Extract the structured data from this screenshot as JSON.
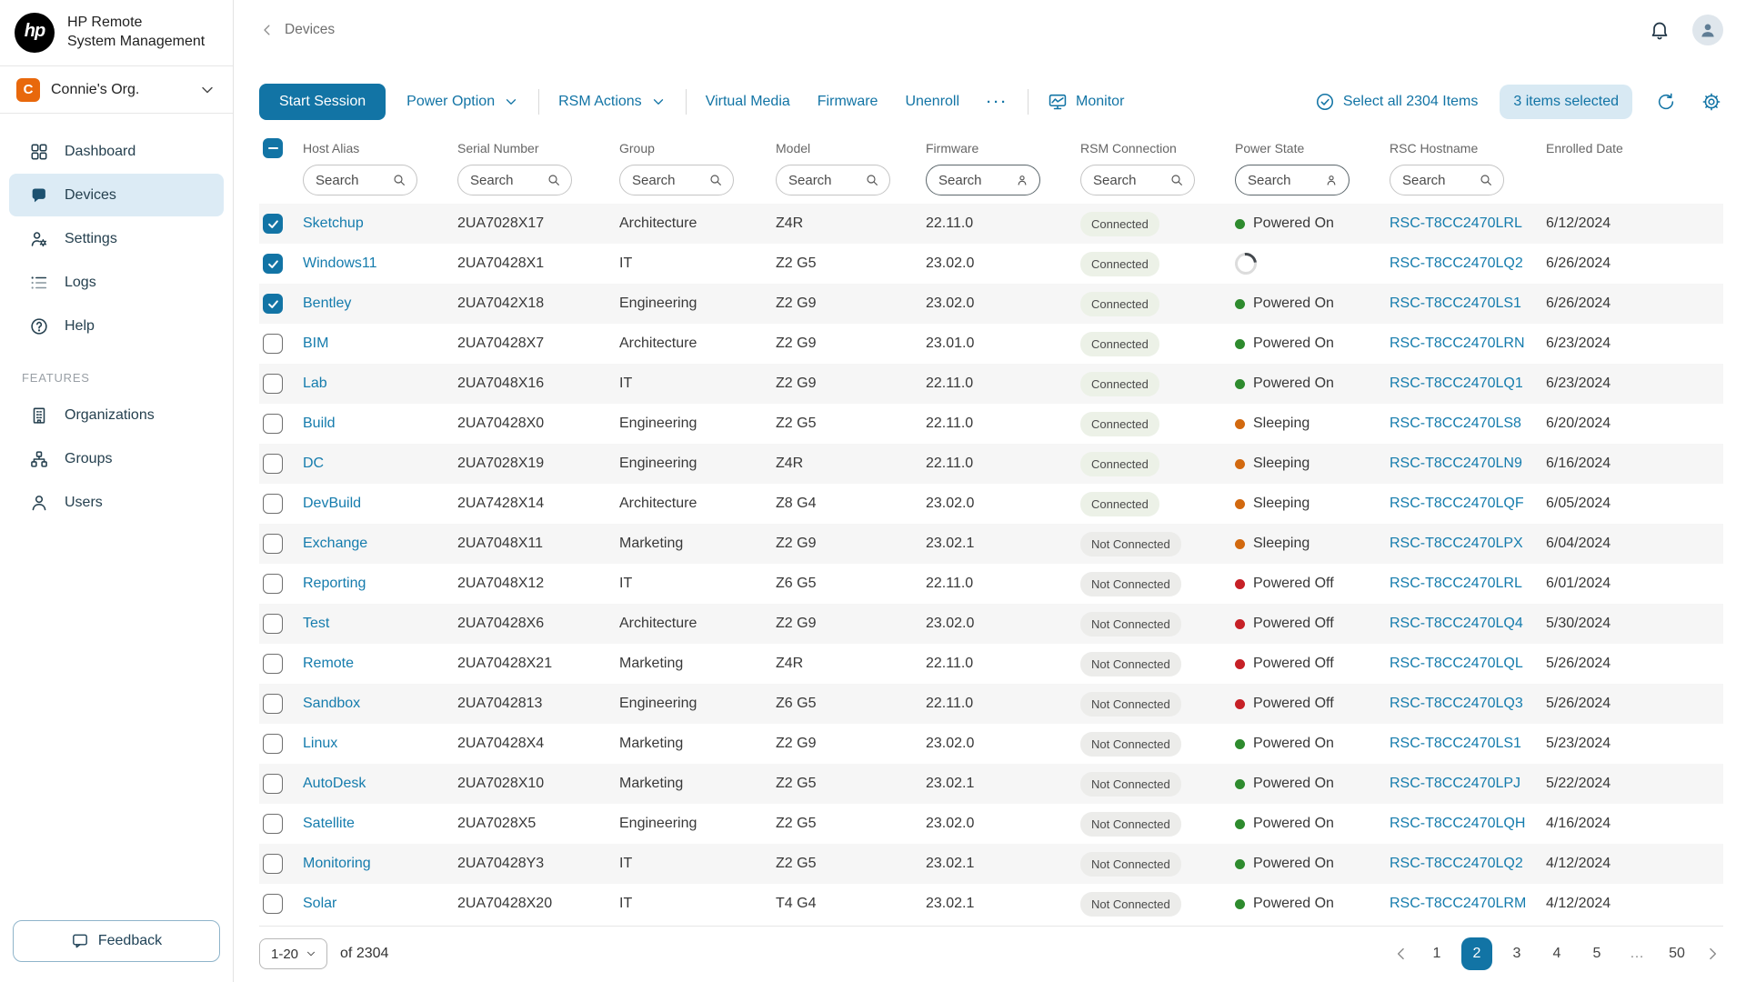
{
  "colors": {
    "accent": "#1274A5",
    "link": "#157CAD",
    "green": "#2E8B2E",
    "orange": "#D2690F",
    "red": "#C62026",
    "org_avatar": "#E8680C",
    "selected_badge_bg": "#D8E9F3",
    "nav_active_bg": "#DCEBF5",
    "row_stripe": "#F6F6F6"
  },
  "brand": {
    "logo_text": "hp",
    "title_line1": "HP Remote",
    "title_line2": "System Management"
  },
  "org": {
    "name": "Connie's Org.",
    "initial": "C"
  },
  "sidebar": {
    "items": [
      {
        "label": "Dashboard",
        "icon": "dashboard-icon",
        "active": false
      },
      {
        "label": "Devices",
        "icon": "devices-icon",
        "active": true
      },
      {
        "label": "Settings",
        "icon": "settings-icon",
        "active": false
      },
      {
        "label": "Logs",
        "icon": "logs-icon",
        "active": false
      },
      {
        "label": "Help",
        "icon": "help-icon",
        "active": false
      }
    ],
    "features_label": "FEATURES",
    "feature_items": [
      {
        "label": "Organizations",
        "icon": "organizations-icon"
      },
      {
        "label": "Groups",
        "icon": "groups-icon"
      },
      {
        "label": "Users",
        "icon": "users-icon"
      }
    ],
    "feedback_label": "Feedback"
  },
  "header": {
    "breadcrumb": "Devices"
  },
  "toolbar": {
    "start_session": "Start Session",
    "power_option": "Power Option",
    "rsm_actions": "RSM Actions",
    "virtual_media": "Virtual Media",
    "firmware": "Firmware",
    "unenroll": "Unenroll",
    "more": "···",
    "monitor": "Monitor",
    "select_all": "Select all 2304 Items",
    "selected_badge": "3 items selected"
  },
  "table": {
    "search_placeholder": "Search",
    "columns": [
      {
        "label": "Host Alias",
        "filter": "search",
        "dark": false
      },
      {
        "label": "Serial Number",
        "filter": "search",
        "dark": false
      },
      {
        "label": "Group",
        "filter": "search",
        "dark": false
      },
      {
        "label": "Model",
        "filter": "search",
        "dark": false
      },
      {
        "label": "Firmware",
        "filter": "person",
        "dark": true
      },
      {
        "label": "RSM Connection",
        "filter": "search",
        "dark": false
      },
      {
        "label": "Power State",
        "filter": "person",
        "dark": true
      },
      {
        "label": "RSC Hostname",
        "filter": "search",
        "dark": false
      },
      {
        "label": "Enrolled Date",
        "filter": null,
        "dark": false
      }
    ],
    "rows": [
      {
        "checked": true,
        "host": "Sketchup",
        "serial": "2UA7028X17",
        "group": "Architecture",
        "model": "Z4R",
        "firmware": "22.11.0",
        "connection": "Connected",
        "power": "on",
        "power_label": "Powered On",
        "hostname": "RSC-T8CC2470LRL",
        "enrolled": "6/12/2024"
      },
      {
        "checked": true,
        "host": "Windows11",
        "serial": "2UA70428X1",
        "group": "IT",
        "model": "Z2 G5",
        "firmware": "23.02.0",
        "connection": "Connected",
        "power": "loading",
        "power_label": "",
        "hostname": "RSC-T8CC2470LQ2",
        "enrolled": "6/26/2024"
      },
      {
        "checked": true,
        "host": "Bentley",
        "serial": "2UA7042X18",
        "group": "Engineering",
        "model": "Z2 G9",
        "firmware": "23.02.0",
        "connection": "Connected",
        "power": "on",
        "power_label": "Powered On",
        "hostname": "RSC-T8CC2470LS1",
        "enrolled": "6/26/2024"
      },
      {
        "checked": false,
        "host": "BIM",
        "serial": "2UA70428X7",
        "group": "Architecture",
        "model": "Z2 G9",
        "firmware": "23.01.0",
        "connection": "Connected",
        "power": "on",
        "power_label": "Powered On",
        "hostname": "RSC-T8CC2470LRN",
        "enrolled": "6/23/2024"
      },
      {
        "checked": false,
        "host": "Lab",
        "serial": "2UA7048X16",
        "group": "IT",
        "model": "Z2 G9",
        "firmware": "22.11.0",
        "connection": "Connected",
        "power": "on",
        "power_label": "Powered On",
        "hostname": "RSC-T8CC2470LQ1",
        "enrolled": "6/23/2024"
      },
      {
        "checked": false,
        "host": "Build",
        "serial": "2UA70428X0",
        "group": "Engineering",
        "model": "Z2 G5",
        "firmware": "22.11.0",
        "connection": "Connected",
        "power": "sleeping",
        "power_label": "Sleeping",
        "hostname": "RSC-T8CC2470LS8",
        "enrolled": "6/20/2024"
      },
      {
        "checked": false,
        "host": "DC",
        "serial": "2UA7028X19",
        "group": "Engineering",
        "model": "Z4R",
        "firmware": "22.11.0",
        "connection": "Connected",
        "power": "sleeping",
        "power_label": "Sleeping",
        "hostname": "RSC-T8CC2470LN9",
        "enrolled": "6/16/2024"
      },
      {
        "checked": false,
        "host": "DevBuild",
        "serial": "2UA7428X14",
        "group": "Architecture",
        "model": "Z8 G4",
        "firmware": "23.02.0",
        "connection": "Connected",
        "power": "sleeping",
        "power_label": "Sleeping",
        "hostname": "RSC-T8CC2470LQF",
        "enrolled": "6/05/2024"
      },
      {
        "checked": false,
        "host": "Exchange",
        "serial": "2UA7048X11",
        "group": "Marketing",
        "model": "Z2 G9",
        "firmware": "23.02.1",
        "connection": "Not Connected",
        "power": "sleeping",
        "power_label": "Sleeping",
        "hostname": "RSC-T8CC2470LPX",
        "enrolled": "6/04/2024"
      },
      {
        "checked": false,
        "host": "Reporting",
        "serial": "2UA7048X12",
        "group": "IT",
        "model": "Z6 G5",
        "firmware": "22.11.0",
        "connection": "Not Connected",
        "power": "off",
        "power_label": "Powered Off",
        "hostname": "RSC-T8CC2470LRL",
        "enrolled": "6/01/2024"
      },
      {
        "checked": false,
        "host": "Test",
        "serial": "2UA70428X6",
        "group": "Architecture",
        "model": "Z2 G9",
        "firmware": "23.02.0",
        "connection": "Not Connected",
        "power": "off",
        "power_label": "Powered Off",
        "hostname": "RSC-T8CC2470LQ4",
        "enrolled": "5/30/2024"
      },
      {
        "checked": false,
        "host": "Remote",
        "serial": "2UA70428X21",
        "group": "Marketing",
        "model": "Z4R",
        "firmware": "22.11.0",
        "connection": "Not Connected",
        "power": "off",
        "power_label": "Powered Off",
        "hostname": "RSC-T8CC2470LQL",
        "enrolled": "5/26/2024"
      },
      {
        "checked": false,
        "host": "Sandbox",
        "serial": "2UA7042813",
        "group": "Engineering",
        "model": "Z6 G5",
        "firmware": "22.11.0",
        "connection": "Not Connected",
        "power": "off",
        "power_label": "Powered Off",
        "hostname": "RSC-T8CC2470LQ3",
        "enrolled": "5/26/2024"
      },
      {
        "checked": false,
        "host": "Linux",
        "serial": "2UA70428X4",
        "group": "Marketing",
        "model": "Z2 G9",
        "firmware": "23.02.0",
        "connection": "Not Connected",
        "power": "on",
        "power_label": "Powered On",
        "hostname": "RSC-T8CC2470LS1",
        "enrolled": "5/23/2024"
      },
      {
        "checked": false,
        "host": "AutoDesk",
        "serial": "2UA7028X10",
        "group": "Marketing",
        "model": "Z2 G5",
        "firmware": "23.02.1",
        "connection": "Not Connected",
        "power": "on",
        "power_label": "Powered On",
        "hostname": "RSC-T8CC2470LPJ",
        "enrolled": "5/22/2024"
      },
      {
        "checked": false,
        "host": "Satellite",
        "serial": "2UA7028X5",
        "group": "Engineering",
        "model": "Z2 G5",
        "firmware": "23.02.0",
        "connection": "Not Connected",
        "power": "on",
        "power_label": "Powered On",
        "hostname": "RSC-T8CC2470LQH",
        "enrolled": "4/16/2024"
      },
      {
        "checked": false,
        "host": "Monitoring",
        "serial": "2UA70428Y3",
        "group": "IT",
        "model": "Z2 G5",
        "firmware": "23.02.1",
        "connection": "Not Connected",
        "power": "on",
        "power_label": "Powered On",
        "hostname": "RSC-T8CC2470LQ2",
        "enrolled": "4/12/2024"
      },
      {
        "checked": false,
        "host": "Solar",
        "serial": "2UA70428X20",
        "group": "IT",
        "model": "T4 G4",
        "firmware": "23.02.1",
        "connection": "Not Connected",
        "power": "on",
        "power_label": "Powered On",
        "hostname": "RSC-T8CC2470LRM",
        "enrolled": "4/12/2024"
      }
    ]
  },
  "pagination": {
    "range": "1-20",
    "of_text": "of 2304",
    "pages": [
      "1",
      "2",
      "3",
      "4",
      "5",
      "…",
      "50"
    ],
    "active": "2"
  }
}
